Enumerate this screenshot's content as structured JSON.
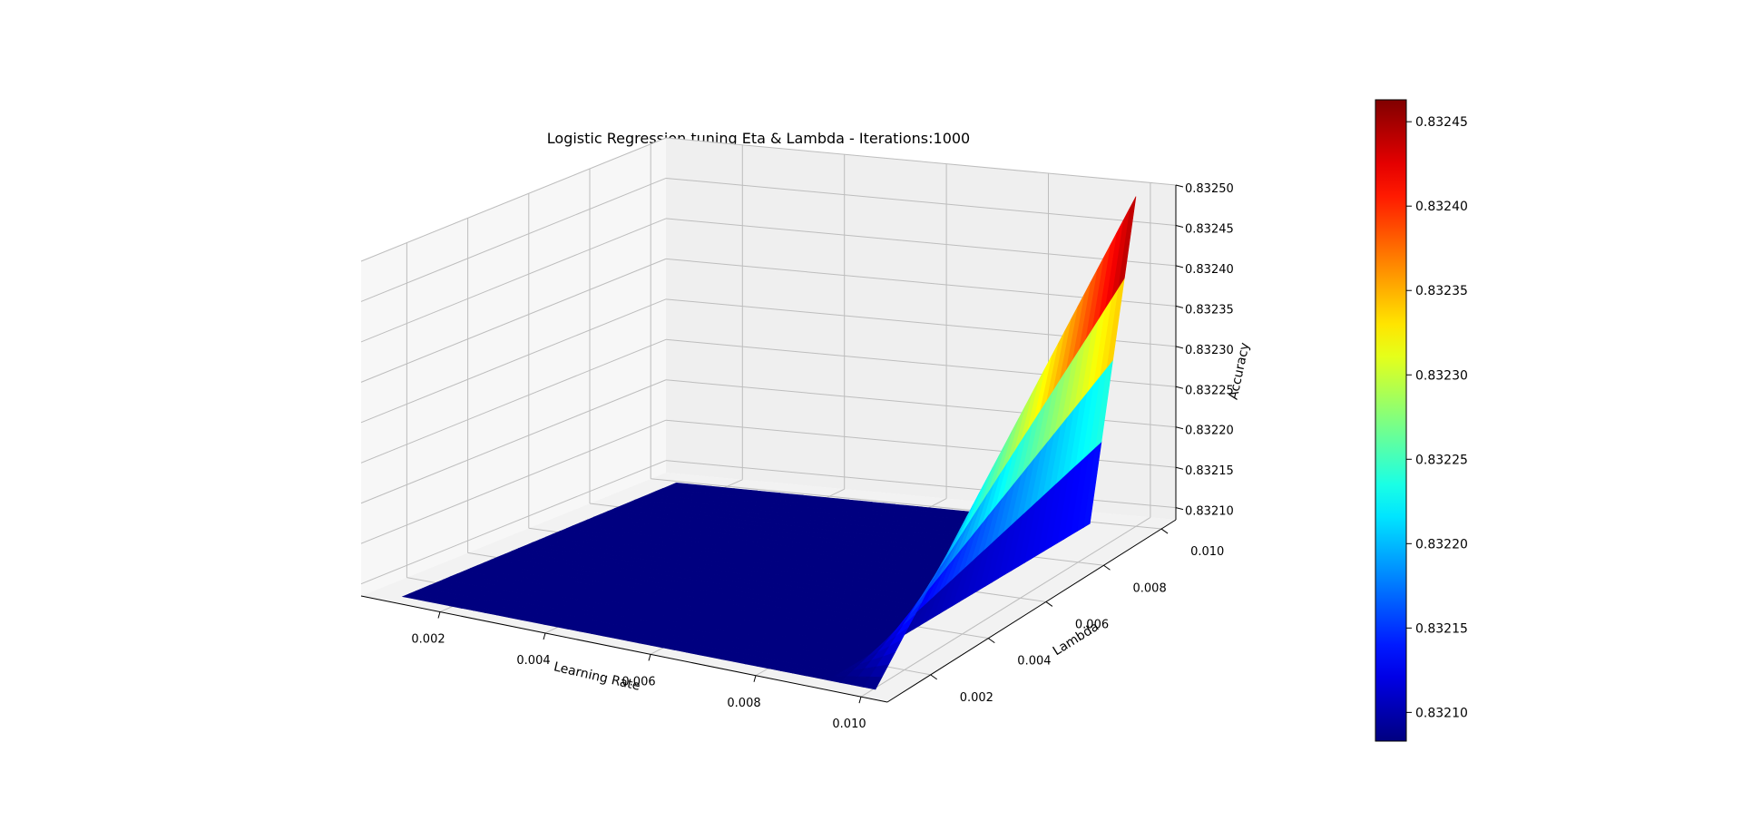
{
  "chart_data": {
    "type": "surface3d",
    "title": "Logistic Regression tuning Eta & Lambda - Iterations:1000",
    "xlabel": "Learning Rate",
    "ylabel": "Lambda",
    "zlabel": "Accuracy",
    "x_ticks": [
      "0.002",
      "0.004",
      "0.006",
      "0.008",
      "0.010"
    ],
    "y_ticks": [
      "0.002",
      "0.004",
      "0.006",
      "0.008",
      "0.010"
    ],
    "z_ticks": [
      "0.83210",
      "0.83215",
      "0.83220",
      "0.83225",
      "0.83230",
      "0.83235",
      "0.83240",
      "0.83245",
      "0.83250"
    ],
    "xlim": [
      0.0005,
      0.0105
    ],
    "ylim": [
      0.0005,
      0.0105
    ],
    "zlim": [
      0.832085,
      0.8325
    ],
    "grid": true,
    "colormap": "jet",
    "colorbar": {
      "range": [
        0.832083,
        0.832463
      ],
      "ticks": [
        "0.83210",
        "0.83215",
        "0.83220",
        "0.83225",
        "0.83230",
        "0.83235",
        "0.83240",
        "0.83245"
      ]
    },
    "surface": {
      "x_values": [
        0.001,
        0.01
      ],
      "y_values": [
        0.001,
        0.01
      ],
      "z_base": 0.832083,
      "z_peak": 0.832494,
      "peak_at": {
        "x": 0.01,
        "y": 0.01
      },
      "description_of_shape": "flat at z_base everywhere except a ridge rising along the high learning-rate edge toward high lambda"
    }
  }
}
